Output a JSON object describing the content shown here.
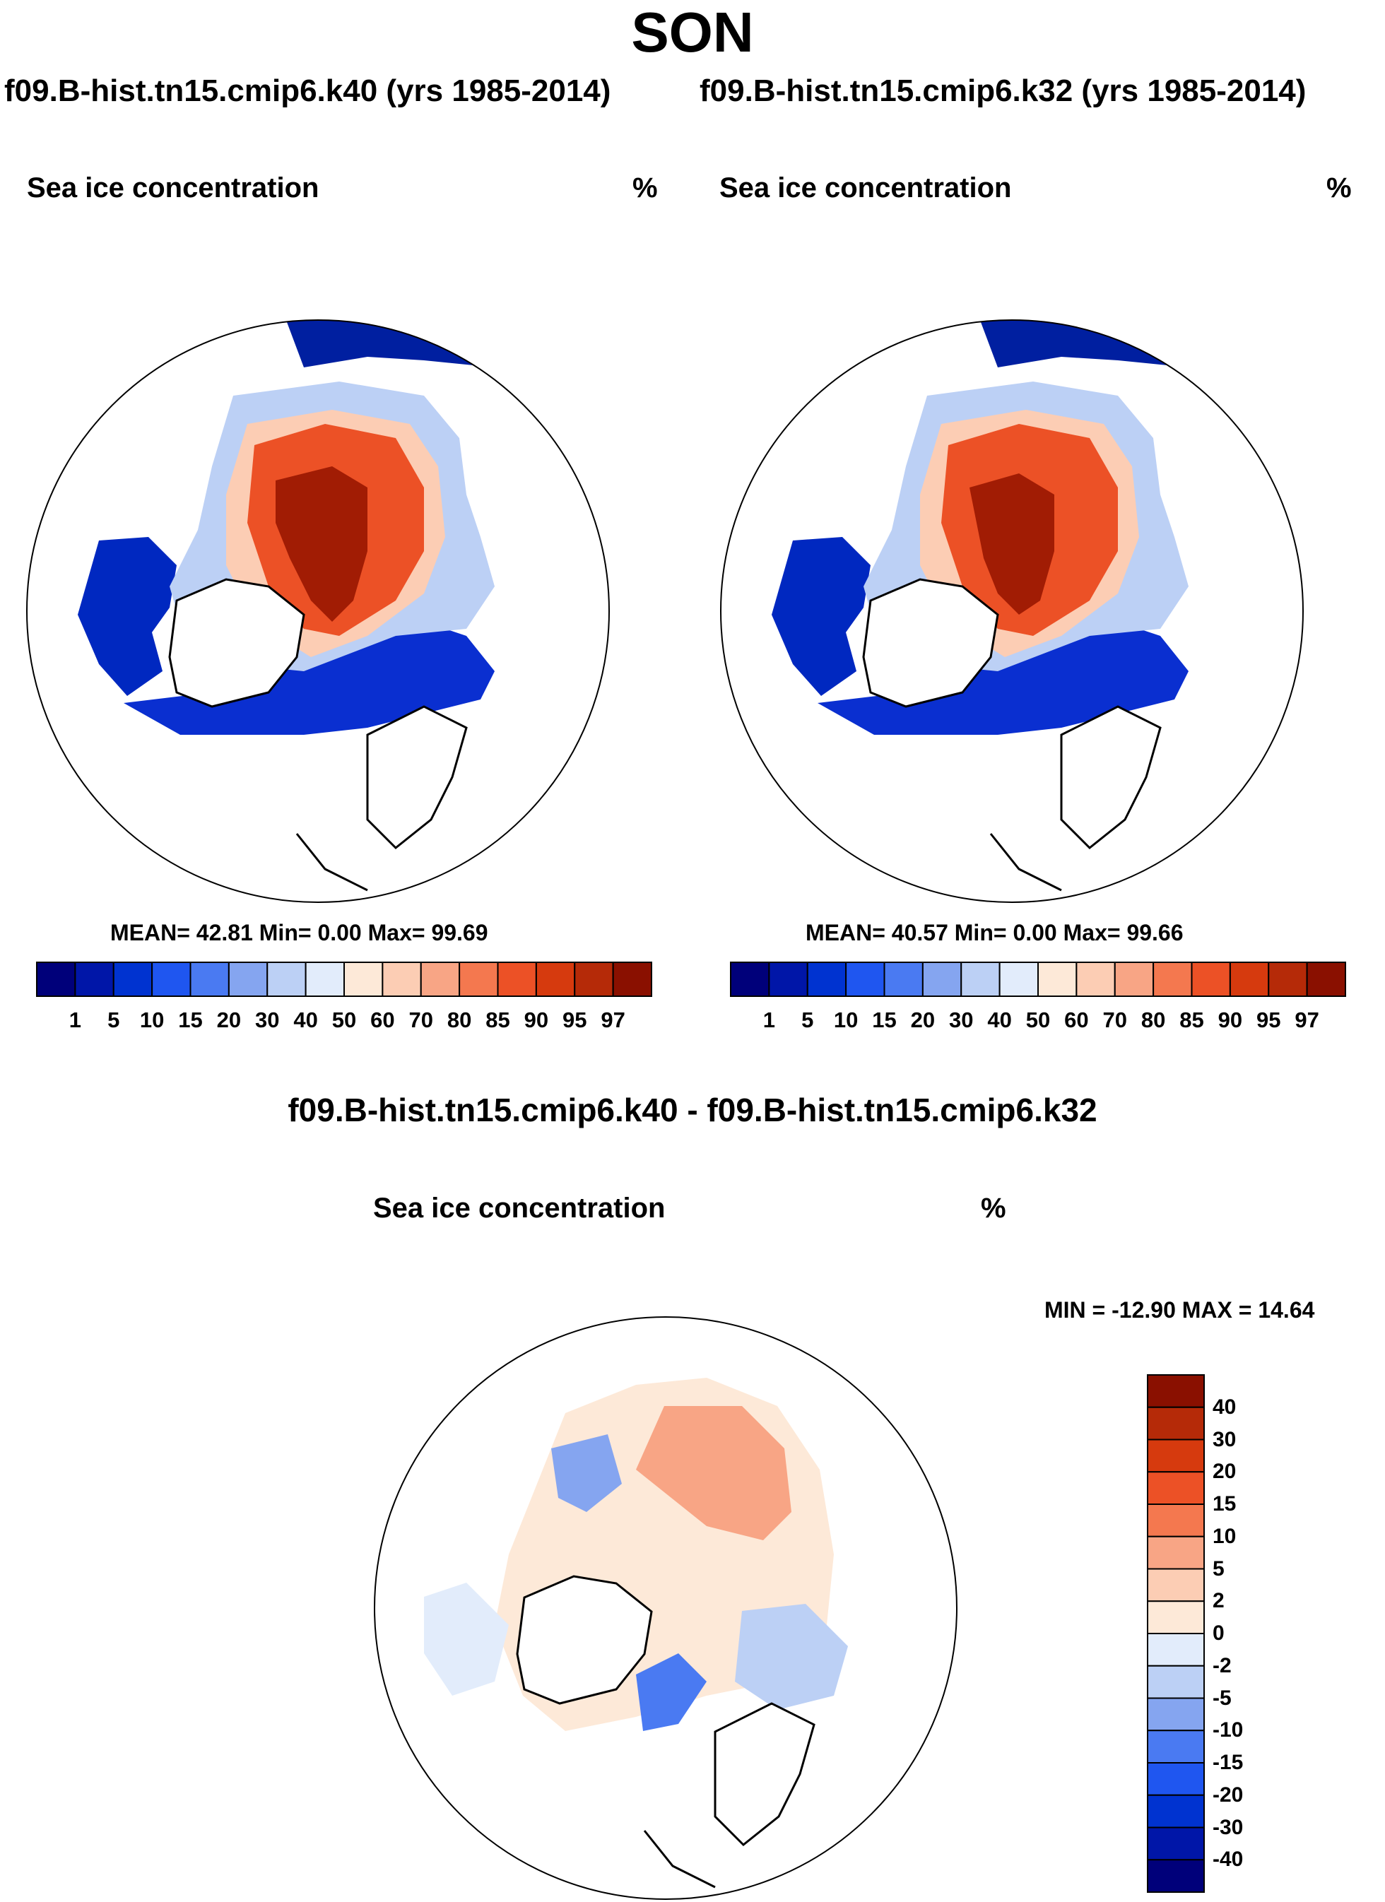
{
  "title": "SON",
  "left_panel": {
    "subtitle": "f09.B-hist.tn15.cmip6.k40 (yrs 1985-2014)",
    "variable": "Sea ice concentration",
    "units": "%",
    "stats": "MEAN=  42.81  Min=   0.00  Max=  99.69"
  },
  "right_panel": {
    "subtitle": "f09.B-hist.tn15.cmip6.k32 (yrs 1985-2014)",
    "variable": "Sea ice concentration",
    "units": "%",
    "stats": "MEAN=  40.57  Min=   0.00  Max=  99.66"
  },
  "diff_panel": {
    "subtitle": "f09.B-hist.tn15.cmip6.k40 - f09.B-hist.tn15.cmip6.k32",
    "variable": "Sea ice concentration",
    "units": "%",
    "stats": "MIN = -12.90 MAX =  14.64"
  },
  "colorbar_main": {
    "ticks": [
      "1",
      "5",
      "10",
      "15",
      "20",
      "30",
      "40",
      "50",
      "60",
      "70",
      "80",
      "85",
      "90",
      "95",
      "97"
    ],
    "colors": [
      "#00007a",
      "#0016a8",
      "#0033d0",
      "#1f56f0",
      "#4a7af2",
      "#85a5f0",
      "#bcd0f5",
      "#e2ecfb",
      "#fde9d8",
      "#fccdb4",
      "#f8a585",
      "#f4784f",
      "#ec5126",
      "#d63a0e",
      "#b52a08",
      "#8a1000"
    ]
  },
  "colorbar_diff": {
    "ticks": [
      "40",
      "30",
      "20",
      "15",
      "10",
      "5",
      "2",
      "0",
      "-2",
      "-5",
      "-10",
      "-15",
      "-20",
      "-30",
      "-40"
    ],
    "colors": [
      "#8a1000",
      "#b52a08",
      "#d63a0e",
      "#ec5126",
      "#f4784f",
      "#f8a585",
      "#fccdb4",
      "#fde9d8",
      "#e2ecfb",
      "#bcd0f5",
      "#85a5f0",
      "#4a7af2",
      "#1f56f0",
      "#0033d0",
      "#0016a8",
      "#00007a"
    ]
  }
}
